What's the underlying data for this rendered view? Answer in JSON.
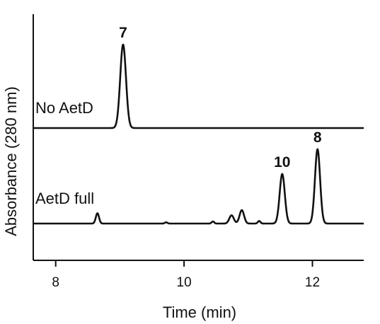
{
  "chart_data": {
    "type": "line",
    "xlabel": "Time (min)",
    "ylabel": "Absorbance (280 nm)",
    "xlim": [
      7.65,
      12.8
    ],
    "x_ticks": [
      8,
      10,
      12
    ],
    "x_tick_labels": [
      "8",
      "10",
      "12"
    ],
    "y_axis_line": true,
    "y_ticks_shown": false,
    "grid": false,
    "legend": "none",
    "color": "#111111",
    "series": [
      {
        "name": "No AetD",
        "baseline": 0,
        "peaks": [
          {
            "x": 9.05,
            "height": 1.0,
            "width": 0.045,
            "label": "7"
          }
        ]
      },
      {
        "name": "AetD full",
        "baseline": 0,
        "peaks": [
          {
            "x": 8.65,
            "height": 0.1,
            "width": 0.025,
            "label": ""
          },
          {
            "x": 9.72,
            "height": 0.012,
            "width": 0.02,
            "label": ""
          },
          {
            "x": 10.45,
            "height": 0.02,
            "width": 0.02,
            "label": ""
          },
          {
            "x": 10.74,
            "height": 0.08,
            "width": 0.035,
            "label": ""
          },
          {
            "x": 10.9,
            "height": 0.13,
            "width": 0.035,
            "label": ""
          },
          {
            "x": 11.17,
            "height": 0.025,
            "width": 0.02,
            "label": ""
          },
          {
            "x": 11.53,
            "height": 0.48,
            "width": 0.04,
            "label": "10"
          },
          {
            "x": 12.08,
            "height": 0.72,
            "width": 0.04,
            "label": "8"
          }
        ]
      }
    ]
  }
}
